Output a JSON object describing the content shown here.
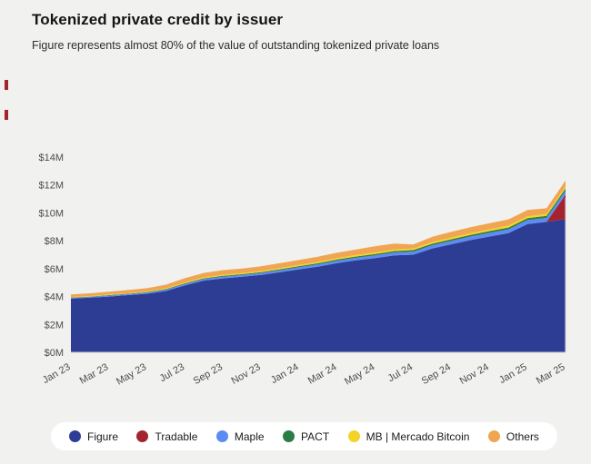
{
  "chart_data": {
    "type": "area",
    "stacked": true,
    "title": "Tokenized private credit by issuer",
    "subtitle": "Figure represents almost 80% of the value of outstanding tokenized private loans",
    "x": [
      "Jan 23",
      "Feb 23",
      "Mar 23",
      "Apr 23",
      "May 23",
      "Jun 23",
      "Jul 23",
      "Aug 23",
      "Sep 23",
      "Oct 23",
      "Nov 23",
      "Dec 23",
      "Jan 24",
      "Feb 24",
      "Mar 24",
      "Apr 24",
      "May 24",
      "Jun 24",
      "Jul 24",
      "Aug 24",
      "Sep 24",
      "Oct 24",
      "Nov 24",
      "Dec 24",
      "Jan 25",
      "Feb 25",
      "Mar 25"
    ],
    "xtick_every": 2,
    "ylim": [
      0,
      14
    ],
    "yticks": [
      {
        "value": 0,
        "label": "$0M"
      },
      {
        "value": 2,
        "label": "$2M"
      },
      {
        "value": 4,
        "label": "$4M"
      },
      {
        "value": 6,
        "label": "$6M"
      },
      {
        "value": 8,
        "label": "$8M"
      },
      {
        "value": 10,
        "label": "$10M"
      },
      {
        "value": 12,
        "label": "$12M"
      },
      {
        "value": 14,
        "label": "$14M"
      }
    ],
    "grid": false,
    "legend_position": "bottom",
    "series": [
      {
        "name": "Figure",
        "color": "#2e3d94",
        "values": [
          3.85,
          3.92,
          4.0,
          4.1,
          4.2,
          4.4,
          4.8,
          5.15,
          5.3,
          5.42,
          5.55,
          5.75,
          5.95,
          6.15,
          6.4,
          6.6,
          6.75,
          6.95,
          7.0,
          7.45,
          7.75,
          8.05,
          8.3,
          8.55,
          9.2,
          9.35,
          9.55
        ]
      },
      {
        "name": "Tradable",
        "color": "#a3242e",
        "values": [
          0,
          0,
          0,
          0,
          0,
          0,
          0,
          0,
          0,
          0,
          0,
          0,
          0,
          0,
          0,
          0,
          0,
          0,
          0,
          0,
          0,
          0,
          0,
          0,
          0,
          0,
          1.75
        ]
      },
      {
        "name": "Maple",
        "color": "#5c8bf5",
        "values": [
          0.06,
          0.06,
          0.07,
          0.07,
          0.08,
          0.09,
          0.1,
          0.11,
          0.12,
          0.12,
          0.13,
          0.14,
          0.15,
          0.16,
          0.17,
          0.18,
          0.2,
          0.21,
          0.22,
          0.23,
          0.24,
          0.25,
          0.26,
          0.27,
          0.28,
          0.29,
          0.3
        ]
      },
      {
        "name": "PACT",
        "color": "#2c7d45",
        "values": [
          0.02,
          0.02,
          0.03,
          0.03,
          0.03,
          0.04,
          0.05,
          0.05,
          0.06,
          0.06,
          0.07,
          0.07,
          0.08,
          0.08,
          0.09,
          0.09,
          0.1,
          0.1,
          0.11,
          0.11,
          0.12,
          0.12,
          0.13,
          0.13,
          0.14,
          0.14,
          0.15
        ]
      },
      {
        "name": "MB | Mercado Bitcoin",
        "color": "#f3d327",
        "values": [
          0.04,
          0.04,
          0.05,
          0.05,
          0.05,
          0.06,
          0.07,
          0.07,
          0.08,
          0.08,
          0.08,
          0.09,
          0.09,
          0.1,
          0.1,
          0.11,
          0.11,
          0.12,
          0.12,
          0.12,
          0.13,
          0.13,
          0.13,
          0.14,
          0.14,
          0.15,
          0.15
        ]
      },
      {
        "name": "Others",
        "color": "#f0a552",
        "values": [
          0.18,
          0.19,
          0.2,
          0.22,
          0.24,
          0.26,
          0.3,
          0.32,
          0.33,
          0.33,
          0.34,
          0.35,
          0.36,
          0.37,
          0.38,
          0.39,
          0.45,
          0.42,
          0.28,
          0.38,
          0.4,
          0.42,
          0.43,
          0.44,
          0.45,
          0.4,
          0.42
        ]
      }
    ]
  }
}
